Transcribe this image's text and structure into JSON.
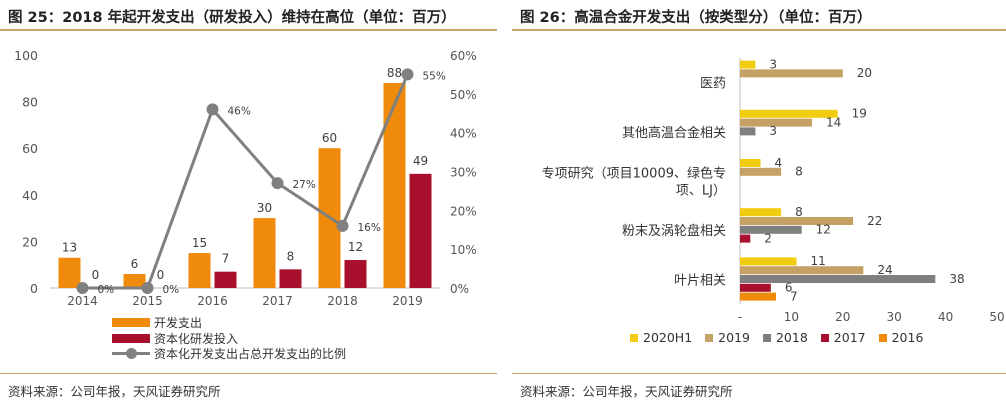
{
  "left": {
    "title": "图 25：2018 年起开发支出（研发投入）维持在高位（单位：百万）",
    "source": "资料来源：公司年报，天风证券研究所",
    "colors": {
      "dev": "#ef8a0a",
      "cap": "#a8102e",
      "ratio": "#808080"
    },
    "legend": [
      "开发支出",
      "资本化研发投入",
      "资本化开发支出占总开发支出的比例"
    ]
  },
  "right": {
    "title": "图 26：高温合金开发支出（按类型分）（单位：百万）",
    "source": "资料来源：公司年报，天风证券研究所",
    "colors": {
      "2020H1": "#f2cc0e",
      "2019": "#c5a165",
      "2018": "#7f7f7f",
      "2017": "#a8102e",
      "2016": "#ef8a0a"
    }
  },
  "chart_data": [
    {
      "type": "bar",
      "title": "图 25：2018 年起开发支出（研发投入）维持在高位（单位：百万）",
      "categories": [
        "2014",
        "2015",
        "2016",
        "2017",
        "2018",
        "2019"
      ],
      "series": [
        {
          "name": "开发支出",
          "type": "bar",
          "axis": "left",
          "values": [
            13,
            6,
            15,
            30,
            60,
            88
          ],
          "labels": [
            "13",
            "6",
            "15",
            "30",
            "60",
            "88"
          ]
        },
        {
          "name": "资本化研发投入",
          "type": "bar",
          "axis": "left",
          "values": [
            0,
            0,
            7,
            8,
            12,
            49
          ],
          "labels": [
            "0",
            "0",
            "7",
            "8",
            "12",
            "49"
          ]
        },
        {
          "name": "资本化开发支出占总开发支出的比例",
          "type": "line",
          "axis": "right",
          "values": [
            0,
            0,
            46,
            27,
            16,
            55
          ],
          "labels": [
            "0%",
            "0%",
            "46%",
            "27%",
            "16%",
            "55%"
          ]
        }
      ],
      "ylim": [
        0,
        100
      ],
      "yticks": [
        "0",
        "20",
        "40",
        "60",
        "80",
        "100"
      ],
      "y2lim": [
        0,
        60
      ],
      "y2ticks": [
        "0%",
        "10%",
        "20%",
        "30%",
        "40%",
        "50%",
        "60%"
      ],
      "grid": false,
      "legend": "bottom"
    },
    {
      "type": "bar",
      "orientation": "horizontal",
      "title": "图 26：高温合金开发支出（按类型分）（单位：百万）",
      "categories": [
        "医药",
        "其他高温合金相关",
        "专项研究（项目10009、绿色专项、LJ）",
        "粉末及涡轮盘相关",
        "叶片相关"
      ],
      "category_lines": [
        [
          "医药"
        ],
        [
          "其他高温合金相关"
        ],
        [
          "专项研究（项目10009、绿色专",
          "项、LJ）"
        ],
        [
          "粉末及涡轮盘相关"
        ],
        [
          "叶片相关"
        ]
      ],
      "series": [
        {
          "name": "2020H1",
          "values": [
            3,
            19,
            4,
            8,
            11
          ],
          "labels": [
            "3",
            "19",
            "4",
            "8",
            "11"
          ]
        },
        {
          "name": "2019",
          "values": [
            20,
            14,
            8,
            22,
            24
          ],
          "labels": [
            "20",
            "14",
            "8",
            "22",
            "24"
          ]
        },
        {
          "name": "2018",
          "values": [
            0,
            3,
            0,
            12,
            38
          ],
          "labels": [
            "",
            "3",
            "",
            "12",
            "38"
          ]
        },
        {
          "name": "2017",
          "values": [
            0,
            0,
            0,
            2,
            6
          ],
          "labels": [
            "",
            "",
            "",
            "2",
            "6"
          ]
        },
        {
          "name": "2016",
          "values": [
            0,
            0,
            0,
            0,
            7
          ],
          "labels": [
            "",
            "",
            "",
            "",
            "7"
          ]
        }
      ],
      "xlim": [
        0,
        50
      ],
      "xticks": [
        "-",
        "10",
        "20",
        "30",
        "40",
        "50"
      ],
      "grid": false,
      "legend": "bottom"
    }
  ]
}
